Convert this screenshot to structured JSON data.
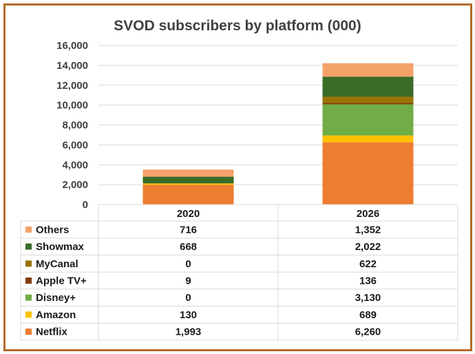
{
  "chart_data": {
    "type": "bar",
    "stacked": true,
    "title": "SVOD subscribers by platform (000)",
    "categories": [
      "2020",
      "2026"
    ],
    "ylim": [
      0,
      16000
    ],
    "yticks": [
      "0",
      "2,000",
      "4,000",
      "6,000",
      "8,000",
      "10,000",
      "12,000",
      "14,000",
      "16,000"
    ],
    "grid": true,
    "legend_placement": "data-table-left",
    "series": [
      {
        "name": "Netflix",
        "color": "#ed7d31",
        "values": [
          1993,
          6260
        ],
        "labels": [
          "1,993",
          "6,260"
        ]
      },
      {
        "name": "Amazon",
        "color": "#ffc000",
        "values": [
          130,
          689
        ],
        "labels": [
          "130",
          "689"
        ]
      },
      {
        "name": "Disney+",
        "color": "#70ad47",
        "values": [
          0,
          3130
        ],
        "labels": [
          "0",
          "3,130"
        ]
      },
      {
        "name": "Apple TV+",
        "color": "#843c0c",
        "values": [
          9,
          136
        ],
        "labels": [
          "9",
          "136"
        ]
      },
      {
        "name": "MyCanal",
        "color": "#997300",
        "values": [
          0,
          622
        ],
        "labels": [
          "0",
          "622"
        ]
      },
      {
        "name": "Showmax",
        "color": "#3a6b27",
        "values": [
          668,
          2022
        ],
        "labels": [
          "668",
          "2,022"
        ]
      },
      {
        "name": "Others",
        "color": "#f4a26a",
        "values": [
          716,
          1352
        ],
        "labels": [
          "716",
          "1,352"
        ]
      }
    ]
  }
}
